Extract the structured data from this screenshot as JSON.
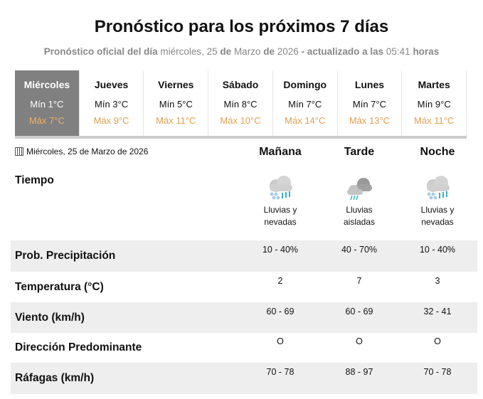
{
  "title": "Pronóstico para los próximos 7 días",
  "subtitle": {
    "p1": "Pronóstico oficial del día",
    "p2": "miércoles, 25",
    "p3": "de",
    "p4": "Marzo",
    "p5": "de",
    "p6": "2026",
    "p7": "- actualizado a las",
    "p8": "05:41",
    "p9": "horas"
  },
  "days": [
    {
      "name": "Miércoles",
      "min": "Mín 1°C",
      "max": "Máx 7°C",
      "selected": true
    },
    {
      "name": "Jueves",
      "min": "Mín 3°C",
      "max": "Máx 9°C"
    },
    {
      "name": "Viernes",
      "min": "Mín 5°C",
      "max": "Máx 11°C"
    },
    {
      "name": "Sábado",
      "min": "Mín 8°C",
      "max": "Máx 10°C"
    },
    {
      "name": "Domingo",
      "min": "Mín 7°C",
      "max": "Máx 14°C"
    },
    {
      "name": "Lunes",
      "min": "Mín 7°C",
      "max": "Máx 13°C"
    },
    {
      "name": "Martes",
      "min": "Mín 9°C",
      "max": "Máx 11°C"
    }
  ],
  "date": "Miércoles, 25 de Marzo de 2026",
  "periods": [
    "Mañana",
    "Tarde",
    "Noche"
  ],
  "tiempo_label": "Tiempo",
  "weather": [
    {
      "icon": "rain-snow-icon",
      "l1": "Lluvias y",
      "l2": "nevadas"
    },
    {
      "icon": "isolated-rain-icon",
      "l1": "Lluvias",
      "l2": "aisladas"
    },
    {
      "icon": "rain-snow-icon",
      "l1": "Lluvias y",
      "l2": "nevadas"
    }
  ],
  "rows": [
    {
      "label": "Prob. Precipitación",
      "values": [
        "10 - 40%",
        "40 - 70%",
        "10 - 40%"
      ]
    },
    {
      "label": "Temperatura (°C)",
      "values": [
        "2",
        "7",
        "3"
      ]
    },
    {
      "label": "Viento (km/h)",
      "values": [
        "60 - 69",
        "60 - 69",
        "32 - 41"
      ]
    },
    {
      "label": "Dirección Predominante",
      "values": [
        "O",
        "O",
        "O"
      ]
    },
    {
      "label": "Ráfagas (km/h)",
      "values": [
        "70 - 78",
        "88 - 97",
        "70 - 78"
      ]
    }
  ],
  "colors": {
    "max_temp": "#e0a050",
    "selected_day": "#808080",
    "row_alt": "#eeeeee"
  }
}
